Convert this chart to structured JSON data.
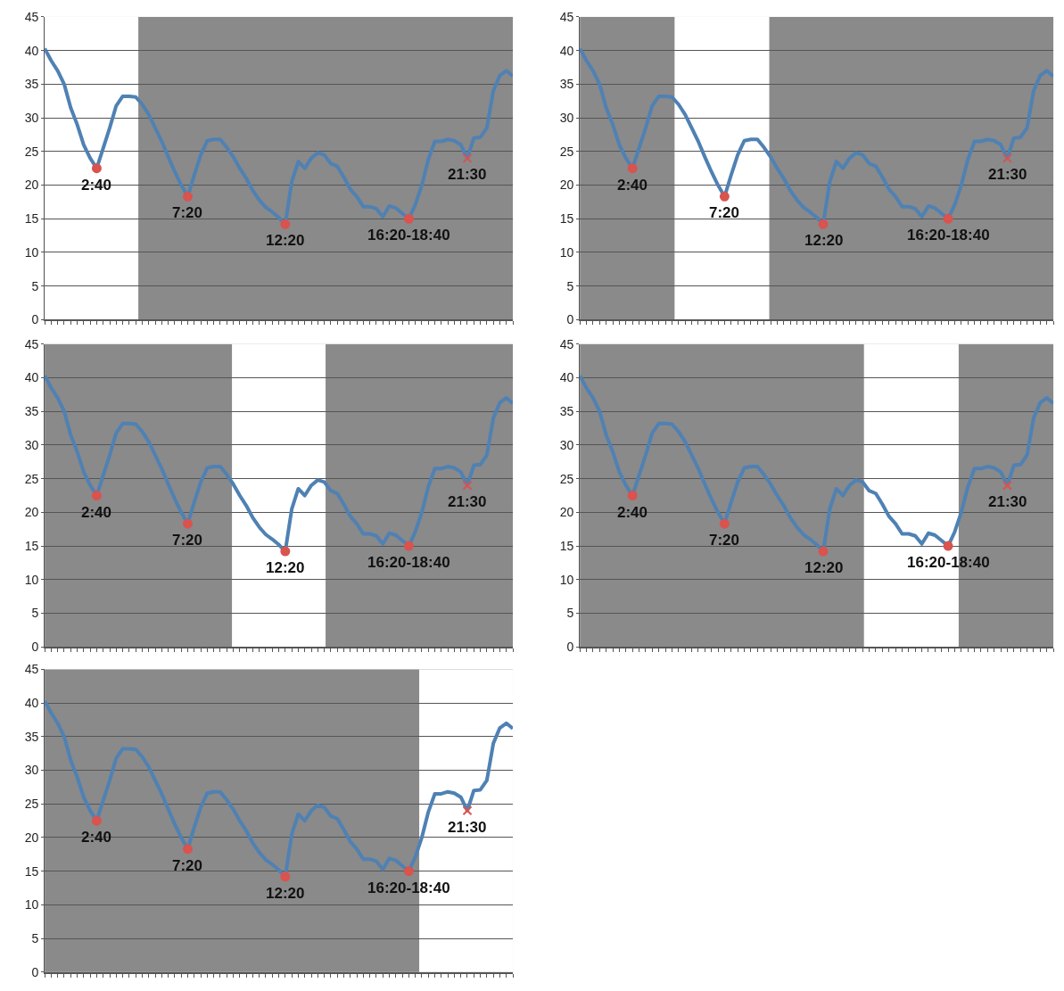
{
  "chart_data": [
    {
      "type": "line",
      "categories": [
        null,
        null,
        null,
        null,
        null,
        null,
        null,
        null,
        null,
        null,
        null,
        null,
        null,
        null,
        null,
        null,
        null,
        null,
        null,
        null,
        null,
        null,
        null,
        null,
        null,
        null,
        null,
        null,
        null,
        null,
        null,
        null,
        null,
        null,
        null,
        null,
        null,
        null,
        null,
        null,
        null,
        null,
        null,
        null,
        null,
        null,
        null,
        null,
        null,
        null,
        null,
        null,
        null,
        null,
        null,
        null,
        null,
        null,
        null,
        null,
        null,
        null,
        null,
        null,
        null,
        null,
        null,
        null,
        null,
        null,
        null,
        null,
        null
      ],
      "ylim": [
        0,
        45
      ],
      "yticks": [
        0,
        5,
        10,
        15,
        20,
        25,
        30,
        35,
        40,
        45
      ],
      "tick_labels": "y",
      "grid": "y",
      "line_style": "solid",
      "series": [
        {
          "color": "#4f81b3",
          "marker": "none",
          "values": [
            40.3,
            38.5,
            37,
            35,
            31.5,
            29,
            26,
            24,
            22.5,
            25.5,
            28.5,
            31.8,
            33.2,
            33.2,
            33.1,
            32,
            30.5,
            28.5,
            26.5,
            24.2,
            22,
            20,
            18.3,
            21.5,
            24.5,
            26.6,
            26.8,
            26.8,
            25.6,
            24.2,
            22.5,
            21,
            19.2,
            17.8,
            16.7,
            16,
            15.2,
            14.2,
            20.5,
            23.5,
            22.5,
            24,
            24.8,
            24.5,
            23.2,
            22.8,
            21.2,
            19.4,
            18.3,
            16.8,
            16.8,
            16.5,
            15.3,
            16.9,
            16.6,
            15.8,
            15,
            17.1,
            20,
            23.8,
            26.5,
            26.5,
            26.8,
            26.6,
            26,
            24,
            27,
            27.1,
            28.5,
            34,
            36.3,
            37,
            36.2
          ]
        },
        {
          "type": "scatter",
          "color": "#d9534f",
          "marker": "circle",
          "values": [
            null,
            null,
            null,
            null,
            null,
            null,
            null,
            null,
            22.5,
            null,
            null,
            null,
            null,
            null,
            null,
            null,
            null,
            null,
            null,
            null,
            null,
            null,
            18.3,
            null,
            null,
            null,
            null,
            null,
            null,
            null,
            null,
            null,
            null,
            null,
            null,
            null,
            null,
            14.2,
            null,
            null,
            null,
            null,
            null,
            null,
            null,
            null,
            null,
            null,
            null,
            null,
            null,
            null,
            null,
            null,
            null,
            null,
            15,
            null,
            null,
            null,
            null,
            null,
            null,
            null,
            null,
            null,
            null,
            null,
            null,
            null,
            null,
            null,
            null
          ]
        },
        {
          "type": "scatter",
          "color": "#d9534f",
          "marker": "cross",
          "values": [
            null,
            null,
            null,
            null,
            null,
            null,
            null,
            null,
            null,
            null,
            null,
            null,
            null,
            null,
            null,
            null,
            null,
            null,
            null,
            null,
            null,
            null,
            null,
            null,
            null,
            null,
            null,
            null,
            null,
            null,
            null,
            null,
            null,
            null,
            null,
            null,
            null,
            null,
            null,
            null,
            null,
            null,
            null,
            null,
            null,
            null,
            null,
            null,
            null,
            null,
            null,
            null,
            null,
            null,
            null,
            null,
            null,
            null,
            null,
            null,
            null,
            null,
            null,
            null,
            null,
            24,
            null,
            null,
            null,
            null,
            null,
            null,
            null
          ]
        }
      ],
      "annotations": [
        "2:40",
        "7:20",
        "12:20",
        "16:20-18:40",
        "21:30"
      ]
    },
    {
      "type": "line",
      "categories": [
        null,
        null,
        null,
        null,
        null,
        null,
        null,
        null,
        null,
        null,
        null,
        null,
        null,
        null,
        null,
        null,
        null,
        null,
        null,
        null,
        null,
        null,
        null,
        null,
        null,
        null,
        null,
        null,
        null,
        null,
        null,
        null,
        null,
        null,
        null,
        null,
        null,
        null,
        null,
        null,
        null,
        null,
        null,
        null,
        null,
        null,
        null,
        null,
        null,
        null,
        null,
        null,
        null,
        null,
        null,
        null,
        null,
        null,
        null,
        null,
        null,
        null,
        null,
        null,
        null,
        null,
        null,
        null,
        null,
        null,
        null,
        null,
        null
      ],
      "ylim": [
        0,
        45
      ],
      "yticks": [
        0,
        5,
        10,
        15,
        20,
        25,
        30,
        35,
        40,
        45
      ],
      "tick_labels": "y",
      "grid": "y",
      "line_style": "solid",
      "series": [
        {
          "color": "#4f81b3",
          "marker": "none",
          "values": [
            40.3,
            38.5,
            37,
            35,
            31.5,
            29,
            26,
            24,
            22.5,
            25.5,
            28.5,
            31.8,
            33.2,
            33.2,
            33.1,
            32,
            30.5,
            28.5,
            26.5,
            24.2,
            22,
            20,
            18.3,
            21.5,
            24.5,
            26.6,
            26.8,
            26.8,
            25.6,
            24.2,
            22.5,
            21,
            19.2,
            17.8,
            16.7,
            16,
            15.2,
            14.2,
            20.5,
            23.5,
            22.5,
            24,
            24.8,
            24.5,
            23.2,
            22.8,
            21.2,
            19.4,
            18.3,
            16.8,
            16.8,
            16.5,
            15.3,
            16.9,
            16.6,
            15.8,
            15,
            17.1,
            20,
            23.8,
            26.5,
            26.5,
            26.8,
            26.6,
            26,
            24,
            27,
            27.1,
            28.5,
            34,
            36.3,
            37,
            36.2
          ]
        },
        {
          "type": "scatter",
          "color": "#d9534f",
          "marker": "circle",
          "values": [
            null,
            null,
            null,
            null,
            null,
            null,
            null,
            null,
            22.5,
            null,
            null,
            null,
            null,
            null,
            null,
            null,
            null,
            null,
            null,
            null,
            null,
            null,
            18.3,
            null,
            null,
            null,
            null,
            null,
            null,
            null,
            null,
            null,
            null,
            null,
            null,
            null,
            null,
            14.2,
            null,
            null,
            null,
            null,
            null,
            null,
            null,
            null,
            null,
            null,
            null,
            null,
            null,
            null,
            null,
            null,
            null,
            null,
            15,
            null,
            null,
            null,
            null,
            null,
            null,
            null,
            null,
            null,
            null,
            null,
            null,
            null,
            null,
            null,
            null
          ]
        },
        {
          "type": "scatter",
          "color": "#d9534f",
          "marker": "cross",
          "values": [
            null,
            null,
            null,
            null,
            null,
            null,
            null,
            null,
            null,
            null,
            null,
            null,
            null,
            null,
            null,
            null,
            null,
            null,
            null,
            null,
            null,
            null,
            null,
            null,
            null,
            null,
            null,
            null,
            null,
            null,
            null,
            null,
            null,
            null,
            null,
            null,
            null,
            null,
            null,
            null,
            null,
            null,
            null,
            null,
            null,
            null,
            null,
            null,
            null,
            null,
            null,
            null,
            null,
            null,
            null,
            null,
            null,
            null,
            null,
            null,
            null,
            null,
            null,
            null,
            null,
            24,
            null,
            null,
            null,
            null,
            null,
            null,
            null
          ]
        }
      ],
      "annotations": [
        "2:40",
        "7:20",
        "12:20",
        "16:20-18:40",
        "21:30"
      ]
    },
    {
      "type": "line",
      "categories": [
        null,
        null,
        null,
        null,
        null,
        null,
        null,
        null,
        null,
        null,
        null,
        null,
        null,
        null,
        null,
        null,
        null,
        null,
        null,
        null,
        null,
        null,
        null,
        null,
        null,
        null,
        null,
        null,
        null,
        null,
        null,
        null,
        null,
        null,
        null,
        null,
        null,
        null,
        null,
        null,
        null,
        null,
        null,
        null,
        null,
        null,
        null,
        null,
        null,
        null,
        null,
        null,
        null,
        null,
        null,
        null,
        null,
        null,
        null,
        null,
        null,
        null,
        null,
        null,
        null,
        null,
        null,
        null,
        null,
        null,
        null,
        null,
        null
      ],
      "ylim": [
        0,
        45
      ],
      "yticks": [
        0,
        5,
        10,
        15,
        20,
        25,
        30,
        35,
        40,
        45
      ],
      "tick_labels": "y",
      "grid": "y",
      "line_style": "solid",
      "series": [
        {
          "color": "#4f81b3",
          "marker": "none",
          "values": [
            40.3,
            38.5,
            37,
            35,
            31.5,
            29,
            26,
            24,
            22.5,
            25.5,
            28.5,
            31.8,
            33.2,
            33.2,
            33.1,
            32,
            30.5,
            28.5,
            26.5,
            24.2,
            22,
            20,
            18.3,
            21.5,
            24.5,
            26.6,
            26.8,
            26.8,
            25.6,
            24.2,
            22.5,
            21,
            19.2,
            17.8,
            16.7,
            16,
            15.2,
            14.2,
            20.5,
            23.5,
            22.5,
            24,
            24.8,
            24.5,
            23.2,
            22.8,
            21.2,
            19.4,
            18.3,
            16.8,
            16.8,
            16.5,
            15.3,
            16.9,
            16.6,
            15.8,
            15,
            17.1,
            20,
            23.8,
            26.5,
            26.5,
            26.8,
            26.6,
            26,
            24,
            27,
            27.1,
            28.5,
            34,
            36.3,
            37,
            36.2
          ]
        },
        {
          "type": "scatter",
          "color": "#d9534f",
          "marker": "circle",
          "values": [
            null,
            null,
            null,
            null,
            null,
            null,
            null,
            null,
            22.5,
            null,
            null,
            null,
            null,
            null,
            null,
            null,
            null,
            null,
            null,
            null,
            null,
            null,
            18.3,
            null,
            null,
            null,
            null,
            null,
            null,
            null,
            null,
            null,
            null,
            null,
            null,
            null,
            null,
            14.2,
            null,
            null,
            null,
            null,
            null,
            null,
            null,
            null,
            null,
            null,
            null,
            null,
            null,
            null,
            null,
            null,
            null,
            null,
            15,
            null,
            null,
            null,
            null,
            null,
            null,
            null,
            null,
            null,
            null,
            null,
            null,
            null,
            null,
            null,
            null
          ]
        },
        {
          "type": "scatter",
          "color": "#d9534f",
          "marker": "cross",
          "values": [
            null,
            null,
            null,
            null,
            null,
            null,
            null,
            null,
            null,
            null,
            null,
            null,
            null,
            null,
            null,
            null,
            null,
            null,
            null,
            null,
            null,
            null,
            null,
            null,
            null,
            null,
            null,
            null,
            null,
            null,
            null,
            null,
            null,
            null,
            null,
            null,
            null,
            null,
            null,
            null,
            null,
            null,
            null,
            null,
            null,
            null,
            null,
            null,
            null,
            null,
            null,
            null,
            null,
            null,
            null,
            null,
            null,
            null,
            null,
            null,
            null,
            null,
            null,
            null,
            null,
            24,
            null,
            null,
            null,
            null,
            null,
            null,
            null
          ]
        }
      ],
      "annotations": [
        "2:40",
        "7:20",
        "12:20",
        "16:20-18:40",
        "21:30"
      ]
    },
    {
      "type": "line",
      "categories": [
        null,
        null,
        null,
        null,
        null,
        null,
        null,
        null,
        null,
        null,
        null,
        null,
        null,
        null,
        null,
        null,
        null,
        null,
        null,
        null,
        null,
        null,
        null,
        null,
        null,
        null,
        null,
        null,
        null,
        null,
        null,
        null,
        null,
        null,
        null,
        null,
        null,
        null,
        null,
        null,
        null,
        null,
        null,
        null,
        null,
        null,
        null,
        null,
        null,
        null,
        null,
        null,
        null,
        null,
        null,
        null,
        null,
        null,
        null,
        null,
        null,
        null,
        null,
        null,
        null,
        null,
        null,
        null,
        null,
        null,
        null,
        null,
        null
      ],
      "ylim": [
        0,
        45
      ],
      "yticks": [
        0,
        5,
        10,
        15,
        20,
        25,
        30,
        35,
        40,
        45
      ],
      "tick_labels": "y",
      "grid": "y",
      "line_style": "solid",
      "series": [
        {
          "color": "#4f81b3",
          "marker": "none",
          "values": [
            40.3,
            38.5,
            37,
            35,
            31.5,
            29,
            26,
            24,
            22.5,
            25.5,
            28.5,
            31.8,
            33.2,
            33.2,
            33.1,
            32,
            30.5,
            28.5,
            26.5,
            24.2,
            22,
            20,
            18.3,
            21.5,
            24.5,
            26.6,
            26.8,
            26.8,
            25.6,
            24.2,
            22.5,
            21,
            19.2,
            17.8,
            16.7,
            16,
            15.2,
            14.2,
            20.5,
            23.5,
            22.5,
            24,
            24.8,
            24.5,
            23.2,
            22.8,
            21.2,
            19.4,
            18.3,
            16.8,
            16.8,
            16.5,
            15.3,
            16.9,
            16.6,
            15.8,
            15,
            17.1,
            20,
            23.8,
            26.5,
            26.5,
            26.8,
            26.6,
            26,
            24,
            27,
            27.1,
            28.5,
            34,
            36.3,
            37,
            36.2
          ]
        },
        {
          "type": "scatter",
          "color": "#d9534f",
          "marker": "circle",
          "values": [
            null,
            null,
            null,
            null,
            null,
            null,
            null,
            null,
            22.5,
            null,
            null,
            null,
            null,
            null,
            null,
            null,
            null,
            null,
            null,
            null,
            null,
            null,
            18.3,
            null,
            null,
            null,
            null,
            null,
            null,
            null,
            null,
            null,
            null,
            null,
            null,
            null,
            null,
            14.2,
            null,
            null,
            null,
            null,
            null,
            null,
            null,
            null,
            null,
            null,
            null,
            null,
            null,
            null,
            null,
            null,
            null,
            null,
            15,
            null,
            null,
            null,
            null,
            null,
            null,
            null,
            null,
            null,
            null,
            null,
            null,
            null,
            null,
            null,
            null
          ]
        },
        {
          "type": "scatter",
          "color": "#d9534f",
          "marker": "cross",
          "values": [
            null,
            null,
            null,
            null,
            null,
            null,
            null,
            null,
            null,
            null,
            null,
            null,
            null,
            null,
            null,
            null,
            null,
            null,
            null,
            null,
            null,
            null,
            null,
            null,
            null,
            null,
            null,
            null,
            null,
            null,
            null,
            null,
            null,
            null,
            null,
            null,
            null,
            null,
            null,
            null,
            null,
            null,
            null,
            null,
            null,
            null,
            null,
            null,
            null,
            null,
            null,
            null,
            null,
            null,
            null,
            null,
            null,
            null,
            null,
            null,
            null,
            null,
            null,
            null,
            null,
            24,
            null,
            null,
            null,
            null,
            null,
            null,
            null
          ]
        }
      ],
      "annotations": [
        "2:40",
        "7:20",
        "12:20",
        "16:20-18:40",
        "21:30"
      ]
    },
    {
      "type": "line",
      "categories": [
        null,
        null,
        null,
        null,
        null,
        null,
        null,
        null,
        null,
        null,
        null,
        null,
        null,
        null,
        null,
        null,
        null,
        null,
        null,
        null,
        null,
        null,
        null,
        null,
        null,
        null,
        null,
        null,
        null,
        null,
        null,
        null,
        null,
        null,
        null,
        null,
        null,
        null,
        null,
        null,
        null,
        null,
        null,
        null,
        null,
        null,
        null,
        null,
        null,
        null,
        null,
        null,
        null,
        null,
        null,
        null,
        null,
        null,
        null,
        null,
        null,
        null,
        null,
        null,
        null,
        null,
        null,
        null,
        null,
        null,
        null,
        null,
        null
      ],
      "ylim": [
        0,
        45
      ],
      "yticks": [
        0,
        5,
        10,
        15,
        20,
        25,
        30,
        35,
        40,
        45
      ],
      "tick_labels": "y",
      "grid": "y",
      "line_style": "solid",
      "series": [
        {
          "color": "#4f81b3",
          "marker": "none",
          "values": [
            40.3,
            38.5,
            37,
            35,
            31.5,
            29,
            26,
            24,
            22.5,
            25.5,
            28.5,
            31.8,
            33.2,
            33.2,
            33.1,
            32,
            30.5,
            28.5,
            26.5,
            24.2,
            22,
            20,
            18.3,
            21.5,
            24.5,
            26.6,
            26.8,
            26.8,
            25.6,
            24.2,
            22.5,
            21,
            19.2,
            17.8,
            16.7,
            16,
            15.2,
            14.2,
            20.5,
            23.5,
            22.5,
            24,
            24.8,
            24.5,
            23.2,
            22.8,
            21.2,
            19.4,
            18.3,
            16.8,
            16.8,
            16.5,
            15.3,
            16.9,
            16.6,
            15.8,
            15,
            17.1,
            20,
            23.8,
            26.5,
            26.5,
            26.8,
            26.6,
            26,
            24,
            27,
            27.1,
            28.5,
            34,
            36.3,
            37,
            36.2
          ]
        },
        {
          "type": "scatter",
          "color": "#d9534f",
          "marker": "circle",
          "values": [
            null,
            null,
            null,
            null,
            null,
            null,
            null,
            null,
            22.5,
            null,
            null,
            null,
            null,
            null,
            null,
            null,
            null,
            null,
            null,
            null,
            null,
            null,
            18.3,
            null,
            null,
            null,
            null,
            null,
            null,
            null,
            null,
            null,
            null,
            null,
            null,
            null,
            null,
            14.2,
            null,
            null,
            null,
            null,
            null,
            null,
            null,
            null,
            null,
            null,
            null,
            null,
            null,
            null,
            null,
            null,
            null,
            null,
            15,
            null,
            null,
            null,
            null,
            null,
            null,
            null,
            null,
            null,
            null,
            null,
            null,
            null,
            null,
            null,
            null
          ]
        },
        {
          "type": "scatter",
          "color": "#d9534f",
          "marker": "cross",
          "values": [
            null,
            null,
            null,
            null,
            null,
            null,
            null,
            null,
            null,
            null,
            null,
            null,
            null,
            null,
            null,
            null,
            null,
            null,
            null,
            null,
            null,
            null,
            null,
            null,
            null,
            null,
            null,
            null,
            null,
            null,
            null,
            null,
            null,
            null,
            null,
            null,
            null,
            null,
            null,
            null,
            null,
            null,
            null,
            null,
            null,
            null,
            null,
            null,
            null,
            null,
            null,
            null,
            null,
            null,
            null,
            null,
            null,
            null,
            null,
            null,
            null,
            null,
            null,
            null,
            null,
            24,
            null,
            null,
            null,
            null,
            null,
            null,
            null
          ]
        }
      ],
      "annotations": [
        "2:40",
        "7:20",
        "12:20",
        "16:20-18:40",
        "21:30"
      ]
    }
  ]
}
